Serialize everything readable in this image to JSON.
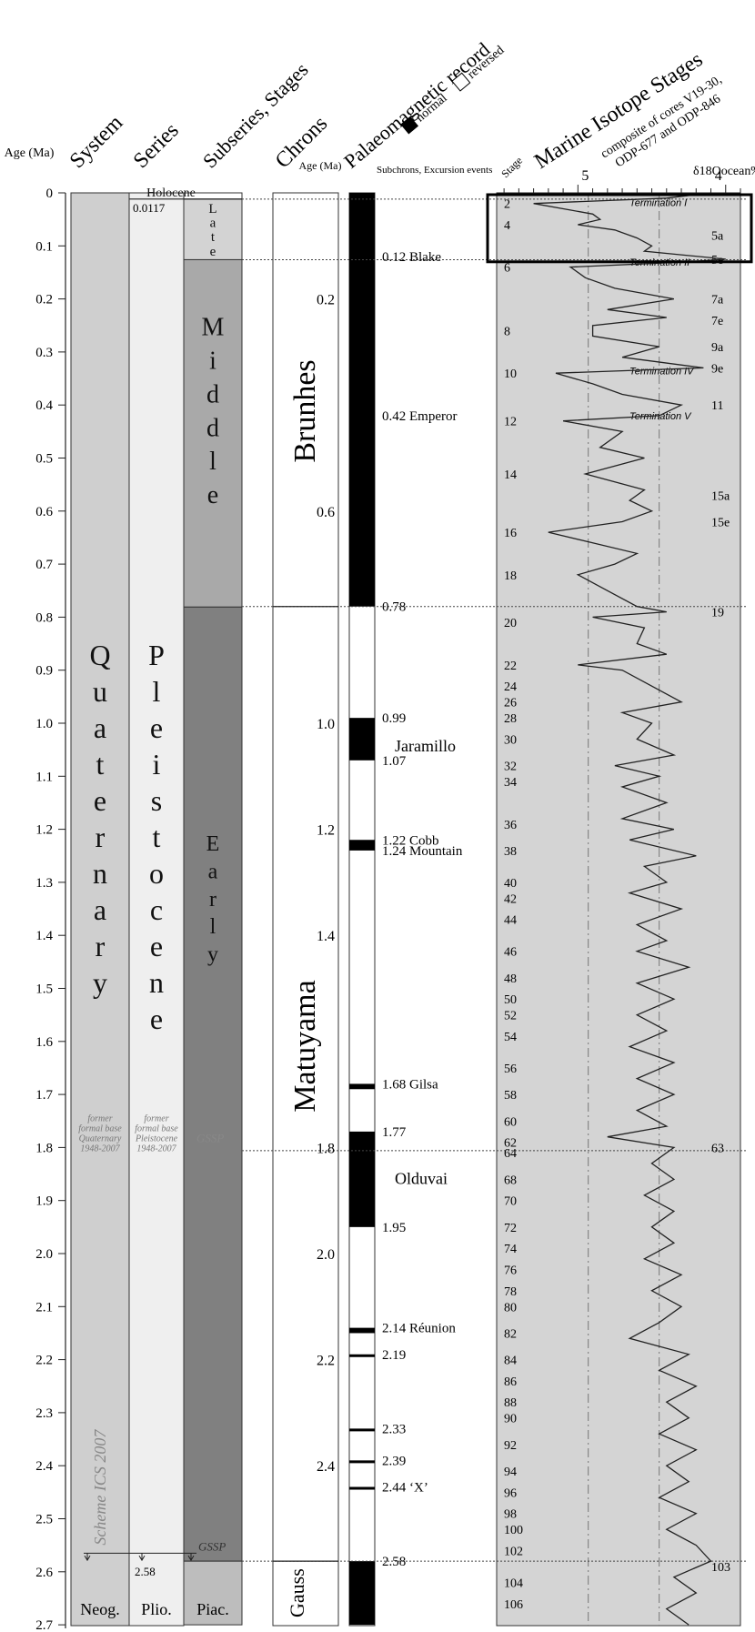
{
  "chart_data": {
    "type": "stratigraphic-chart",
    "headers": {
      "age": "Age (Ma)",
      "system": "System",
      "series": "Series",
      "subseries": "Subseries, Stages",
      "chrons": "Chrons",
      "chron_age": "Age (Ma)",
      "palaeomag": "Palaeomagnetic record",
      "legend_normal": "normal",
      "legend_reversed": "reversed",
      "subchrons": "Subchrons, Excursion events",
      "stage_axis": "Stage",
      "isotope_title": "Marine Isotope Stages",
      "isotope_sub1": "composite of cores V19-30,",
      "isotope_sub2": "ODP-677 and ODP-846",
      "d18o_label": "δ18Oocean‰"
    },
    "age_axis": {
      "min": 0,
      "max": 2.7,
      "step": 0.1,
      "tick_labels": [
        "0",
        "0.1",
        "0.2",
        "0.3",
        "0.4",
        "0.5",
        "0.6",
        "0.7",
        "0.8",
        "0.9",
        "1.0",
        "1.1",
        "1.2",
        "1.3",
        "1.4",
        "1.5",
        "1.6",
        "1.7",
        "1.8",
        "1.9",
        "2.0",
        "2.1",
        "2.2",
        "2.3",
        "2.4",
        "2.5",
        "2.6",
        "2.7"
      ]
    },
    "system": [
      {
        "label": "Quaternary",
        "top": 0,
        "bottom": 2.58
      },
      {
        "label": "Neog.",
        "top": 2.58,
        "bottom": 2.7
      }
    ],
    "series": [
      {
        "label": "Pleistocene",
        "top": 0.0117,
        "bottom": 2.58
      },
      {
        "label": "Plio.",
        "top": 2.58,
        "bottom": 2.7
      }
    ],
    "subseries": [
      {
        "label": "Late",
        "top": 0.0117,
        "bottom": 0.126,
        "color": "#d3d3d3"
      },
      {
        "label": "Middle",
        "top": 0.126,
        "bottom": 0.781,
        "color": "#a9a9a9"
      },
      {
        "label": "Early",
        "top": 0.781,
        "bottom": 2.58,
        "color": "#808080"
      },
      {
        "label": "Piac.",
        "top": 2.58,
        "bottom": 2.7,
        "color": "#bdbdbd"
      }
    ],
    "boundary_labels": {
      "holocene": "Holocene",
      "holocene_age": "0.0117",
      "pliocene_base": "2.58",
      "former_quaternary": [
        "former",
        "formal base",
        "Quaternary",
        "1948-2007"
      ],
      "former_pleistocene": [
        "former",
        "formal base",
        "Pleistocene",
        "1948-2007"
      ],
      "gssp": "GSSP",
      "scheme": "Scheme ICS 2007"
    },
    "chrons": [
      {
        "label": "Brunhes",
        "top": 0,
        "bottom": 0.78
      },
      {
        "label": "Matuyama",
        "top": 0.78,
        "bottom": 2.58
      },
      {
        "label": "Gauss",
        "top": 2.58,
        "bottom": 2.7
      }
    ],
    "chron_ages": [
      "0.2",
      "0.6",
      "1.0",
      "1.2",
      "1.4",
      "1.8",
      "2.0",
      "2.2",
      "2.4"
    ],
    "normal_intervals": [
      [
        0,
        0.78
      ],
      [
        0.99,
        1.07
      ],
      [
        1.22,
        1.24
      ],
      [
        1.68,
        1.69
      ],
      [
        1.77,
        1.95
      ],
      [
        2.14,
        2.15
      ],
      [
        2.19,
        2.195
      ],
      [
        2.33,
        2.335
      ],
      [
        2.39,
        2.395
      ],
      [
        2.44,
        2.445
      ],
      [
        2.58,
        2.7
      ]
    ],
    "subchron_events": [
      {
        "age": 0.12,
        "label": "0.12 Blake"
      },
      {
        "age": 0.42,
        "label": "0.42 Emperor"
      },
      {
        "age": 0.78,
        "label": "0.78"
      },
      {
        "age": 0.99,
        "label": "0.99"
      },
      {
        "age": 1.045,
        "label": "Jaramillo"
      },
      {
        "age": 1.07,
        "label": "1.07"
      },
      {
        "age": 1.22,
        "label": "1.22 Cobb"
      },
      {
        "age": 1.24,
        "label": "1.24 Mountain"
      },
      {
        "age": 1.68,
        "label": "1.68 Gilsa"
      },
      {
        "age": 1.77,
        "label": "1.77"
      },
      {
        "age": 1.86,
        "label": "Olduvai"
      },
      {
        "age": 1.95,
        "label": "1.95"
      },
      {
        "age": 2.14,
        "label": "2.14 Réunion"
      },
      {
        "age": 2.19,
        "label": "2.19"
      },
      {
        "age": 2.33,
        "label": "2.33"
      },
      {
        "age": 2.39,
        "label": "2.39"
      },
      {
        "age": 2.44,
        "label": "2.44 ‘X’"
      },
      {
        "age": 2.58,
        "label": "2.58"
      }
    ],
    "d18o_axis": {
      "ticks": [
        "5",
        "4"
      ]
    },
    "terminations": [
      {
        "age": 0.018,
        "label": "Termination I"
      },
      {
        "age": 0.13,
        "label": "Termination II"
      },
      {
        "age": 0.335,
        "label": "Termination IV"
      },
      {
        "age": 0.42,
        "label": "Termination V"
      }
    ],
    "stages_left": [
      {
        "n": "2",
        "age": 0.02
      },
      {
        "n": "4",
        "age": 0.06
      },
      {
        "n": "6",
        "age": 0.14
      },
      {
        "n": "8",
        "age": 0.26
      },
      {
        "n": "10",
        "age": 0.34
      },
      {
        "n": "12",
        "age": 0.43
      },
      {
        "n": "14",
        "age": 0.53
      },
      {
        "n": "16",
        "age": 0.64
      },
      {
        "n": "18",
        "age": 0.72
      },
      {
        "n": "20",
        "age": 0.81
      },
      {
        "n": "22",
        "age": 0.89
      },
      {
        "n": "24",
        "age": 0.93
      },
      {
        "n": "26",
        "age": 0.96
      },
      {
        "n": "28",
        "age": 0.99
      },
      {
        "n": "30",
        "age": 1.03
      },
      {
        "n": "32",
        "age": 1.08
      },
      {
        "n": "34",
        "age": 1.11
      },
      {
        "n": "36",
        "age": 1.19
      },
      {
        "n": "38",
        "age": 1.24
      },
      {
        "n": "40",
        "age": 1.3
      },
      {
        "n": "42",
        "age": 1.33
      },
      {
        "n": "44",
        "age": 1.37
      },
      {
        "n": "46",
        "age": 1.43
      },
      {
        "n": "48",
        "age": 1.48
      },
      {
        "n": "50",
        "age": 1.52
      },
      {
        "n": "52",
        "age": 1.55
      },
      {
        "n": "54",
        "age": 1.59
      },
      {
        "n": "56",
        "age": 1.65
      },
      {
        "n": "58",
        "age": 1.7
      },
      {
        "n": "60",
        "age": 1.75
      },
      {
        "n": "62",
        "age": 1.79
      },
      {
        "n": "64",
        "age": 1.81
      },
      {
        "n": "68",
        "age": 1.86
      },
      {
        "n": "70",
        "age": 1.9
      },
      {
        "n": "72",
        "age": 1.95
      },
      {
        "n": "74",
        "age": 1.99
      },
      {
        "n": "76",
        "age": 2.03
      },
      {
        "n": "78",
        "age": 2.07
      },
      {
        "n": "80",
        "age": 2.1
      },
      {
        "n": "82",
        "age": 2.15
      },
      {
        "n": "84",
        "age": 2.2
      },
      {
        "n": "86",
        "age": 2.24
      },
      {
        "n": "88",
        "age": 2.28
      },
      {
        "n": "90",
        "age": 2.31
      },
      {
        "n": "92",
        "age": 2.36
      },
      {
        "n": "94",
        "age": 2.41
      },
      {
        "n": "96",
        "age": 2.45
      },
      {
        "n": "98",
        "age": 2.49
      },
      {
        "n": "100",
        "age": 2.52
      },
      {
        "n": "102",
        "age": 2.56
      },
      {
        "n": "104",
        "age": 2.62
      },
      {
        "n": "106",
        "age": 2.66
      }
    ],
    "stages_right": [
      {
        "n": "5a",
        "age": 0.08
      },
      {
        "n": "5e",
        "age": 0.125
      },
      {
        "n": "7a",
        "age": 0.2
      },
      {
        "n": "7e",
        "age": 0.24
      },
      {
        "n": "9a",
        "age": 0.29
      },
      {
        "n": "9e",
        "age": 0.33
      },
      {
        "n": "11",
        "age": 0.4
      },
      {
        "n": "15a",
        "age": 0.57
      },
      {
        "n": "15e",
        "age": 0.62
      },
      {
        "n": "19",
        "age": 0.79
      },
      {
        "n": "63",
        "age": 1.8
      },
      {
        "n": "103",
        "age": 2.59
      }
    ],
    "d18o_curve": [
      [
        0.0,
        4.1
      ],
      [
        0.01,
        4.4
      ],
      [
        0.02,
        5.3
      ],
      [
        0.04,
        4.9
      ],
      [
        0.05,
        4.85
      ],
      [
        0.06,
        5.0
      ],
      [
        0.07,
        4.75
      ],
      [
        0.085,
        4.6
      ],
      [
        0.1,
        4.5
      ],
      [
        0.11,
        4.55
      ],
      [
        0.125,
        4.0
      ],
      [
        0.13,
        4.25
      ],
      [
        0.14,
        5.05
      ],
      [
        0.16,
        4.95
      ],
      [
        0.18,
        4.75
      ],
      [
        0.2,
        4.35
      ],
      [
        0.22,
        4.8
      ],
      [
        0.235,
        4.4
      ],
      [
        0.25,
        4.9
      ],
      [
        0.27,
        4.9
      ],
      [
        0.29,
        4.45
      ],
      [
        0.31,
        4.7
      ],
      [
        0.33,
        4.15
      ],
      [
        0.34,
        5.15
      ],
      [
        0.36,
        4.9
      ],
      [
        0.38,
        4.7
      ],
      [
        0.4,
        4.3
      ],
      [
        0.42,
        4.45
      ],
      [
        0.43,
        5.1
      ],
      [
        0.45,
        4.7
      ],
      [
        0.48,
        4.85
      ],
      [
        0.5,
        4.55
      ],
      [
        0.53,
        4.95
      ],
      [
        0.56,
        4.55
      ],
      [
        0.58,
        4.65
      ],
      [
        0.6,
        4.5
      ],
      [
        0.62,
        4.7
      ],
      [
        0.64,
        5.2
      ],
      [
        0.66,
        4.9
      ],
      [
        0.68,
        4.6
      ],
      [
        0.7,
        4.75
      ],
      [
        0.72,
        5.0
      ],
      [
        0.75,
        4.8
      ],
      [
        0.78,
        4.6
      ],
      [
        0.79,
        4.4
      ],
      [
        0.8,
        4.9
      ],
      [
        0.82,
        4.55
      ],
      [
        0.85,
        4.6
      ],
      [
        0.87,
        4.4
      ],
      [
        0.89,
        5.0
      ],
      [
        0.9,
        4.7
      ],
      [
        0.93,
        4.5
      ],
      [
        0.96,
        4.3
      ],
      [
        0.98,
        4.7
      ],
      [
        1.0,
        4.5
      ],
      [
        1.03,
        4.6
      ],
      [
        1.06,
        4.35
      ],
      [
        1.08,
        4.75
      ],
      [
        1.1,
        4.45
      ],
      [
        1.12,
        4.7
      ],
      [
        1.15,
        4.4
      ],
      [
        1.18,
        4.7
      ],
      [
        1.2,
        4.35
      ],
      [
        1.22,
        4.65
      ],
      [
        1.25,
        4.2
      ],
      [
        1.27,
        4.55
      ],
      [
        1.3,
        4.4
      ],
      [
        1.32,
        4.65
      ],
      [
        1.35,
        4.3
      ],
      [
        1.38,
        4.6
      ],
      [
        1.41,
        4.4
      ],
      [
        1.43,
        4.6
      ],
      [
        1.46,
        4.25
      ],
      [
        1.49,
        4.6
      ],
      [
        1.52,
        4.35
      ],
      [
        1.55,
        4.6
      ],
      [
        1.58,
        4.4
      ],
      [
        1.61,
        4.65
      ],
      [
        1.64,
        4.35
      ],
      [
        1.67,
        4.6
      ],
      [
        1.7,
        4.35
      ],
      [
        1.73,
        4.6
      ],
      [
        1.76,
        4.4
      ],
      [
        1.78,
        4.8
      ],
      [
        1.8,
        4.35
      ],
      [
        1.83,
        4.5
      ],
      [
        1.86,
        4.35
      ],
      [
        1.89,
        4.55
      ],
      [
        1.92,
        4.35
      ],
      [
        1.95,
        4.5
      ],
      [
        1.98,
        4.35
      ],
      [
        2.01,
        4.55
      ],
      [
        2.04,
        4.3
      ],
      [
        2.07,
        4.5
      ],
      [
        2.1,
        4.3
      ],
      [
        2.13,
        4.45
      ],
      [
        2.16,
        4.65
      ],
      [
        2.19,
        4.25
      ],
      [
        2.22,
        4.45
      ],
      [
        2.25,
        4.2
      ],
      [
        2.28,
        4.4
      ],
      [
        2.31,
        4.25
      ],
      [
        2.34,
        4.45
      ],
      [
        2.37,
        4.2
      ],
      [
        2.4,
        4.4
      ],
      [
        2.43,
        4.25
      ],
      [
        2.46,
        4.45
      ],
      [
        2.49,
        4.2
      ],
      [
        2.52,
        4.4
      ],
      [
        2.55,
        4.2
      ],
      [
        2.58,
        4.1
      ],
      [
        2.61,
        4.35
      ],
      [
        2.64,
        4.2
      ],
      [
        2.67,
        4.4
      ],
      [
        2.7,
        4.25
      ]
    ],
    "highlight_box": {
      "top": 0,
      "bottom": 0.13
    },
    "dotted_boundaries": [
      0.0117,
      0.126,
      0.78,
      1.806,
      2.58
    ]
  }
}
